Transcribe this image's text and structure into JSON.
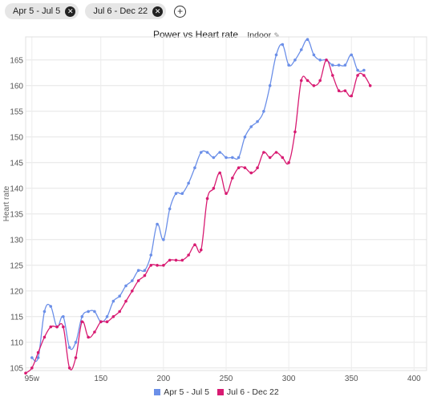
{
  "filters": [
    {
      "label": "Apr 5 - Jul 5",
      "remove_icon": "close-circle-icon"
    },
    {
      "label": "Jul 6 - Dec 22",
      "remove_icon": "close-circle-icon"
    }
  ],
  "add_icon": "plus-circle-icon",
  "header": {
    "title": "Power vs Heart rate",
    "subtitle": "Indoor",
    "edit_icon": "pencil-icon"
  },
  "chart_data": {
    "type": "line",
    "title": "Power vs Heart rate",
    "xlabel": "",
    "ylabel": "Heart rate",
    "xlim": [
      90,
      410
    ],
    "ylim": [
      104.5,
      169.5
    ],
    "x_ticks": [
      95,
      150,
      200,
      250,
      300,
      350,
      400
    ],
    "x_tick_labels": [
      "95w",
      "150",
      "200",
      "250",
      "300",
      "350",
      "400"
    ],
    "y_ticks": [
      105,
      110,
      115,
      120,
      125,
      130,
      135,
      140,
      145,
      150,
      155,
      160,
      165
    ],
    "grid": true,
    "legend_position": "bottom",
    "series": [
      {
        "name": "Apr 5 - Jul 5",
        "color": "#6b8fe8",
        "x": [
          95,
          100,
          105,
          110,
          115,
          120,
          125,
          130,
          135,
          140,
          145,
          150,
          155,
          160,
          165,
          170,
          175,
          180,
          185,
          190,
          195,
          200,
          205,
          210,
          215,
          220,
          225,
          230,
          235,
          240,
          245,
          250,
          255,
          260,
          265,
          270,
          275,
          280,
          285,
          290,
          295,
          300,
          305,
          310,
          315,
          320,
          325,
          330,
          335,
          340,
          345,
          350,
          355,
          360
        ],
        "y": [
          107,
          107,
          116,
          117,
          113,
          115,
          109,
          110,
          115,
          116,
          116,
          114,
          115,
          118,
          119,
          121,
          122,
          124,
          124,
          127,
          133,
          130,
          136,
          139,
          139,
          141,
          144,
          147,
          147,
          146,
          147,
          146,
          146,
          146,
          150,
          152,
          153,
          155,
          160,
          166,
          168,
          164,
          165,
          167,
          169,
          166,
          165,
          165,
          164,
          164,
          164,
          166,
          163,
          163
        ]
      },
      {
        "name": "Jul 6 - Dec 22",
        "color": "#d81b72",
        "x": [
          90,
          95,
          100,
          105,
          110,
          115,
          120,
          125,
          130,
          135,
          140,
          145,
          150,
          155,
          160,
          165,
          170,
          175,
          180,
          185,
          190,
          195,
          200,
          205,
          210,
          215,
          220,
          225,
          230,
          235,
          240,
          245,
          250,
          255,
          260,
          265,
          270,
          275,
          280,
          285,
          290,
          295,
          300,
          305,
          310,
          315,
          320,
          325,
          330,
          335,
          340,
          345,
          350,
          355,
          360,
          365
        ],
        "y": [
          104,
          105,
          108,
          111,
          113,
          113,
          113,
          105,
          107,
          114,
          111,
          112,
          114,
          114,
          115,
          116,
          118,
          120,
          122,
          123,
          125,
          125,
          125,
          126,
          126,
          126,
          127,
          129,
          128,
          138,
          140,
          143,
          139,
          142,
          144,
          144,
          143,
          144,
          147,
          146,
          147,
          146,
          145,
          151,
          161,
          161,
          160,
          161,
          165,
          162,
          159,
          159,
          158,
          162,
          162,
          160
        ]
      }
    ]
  }
}
